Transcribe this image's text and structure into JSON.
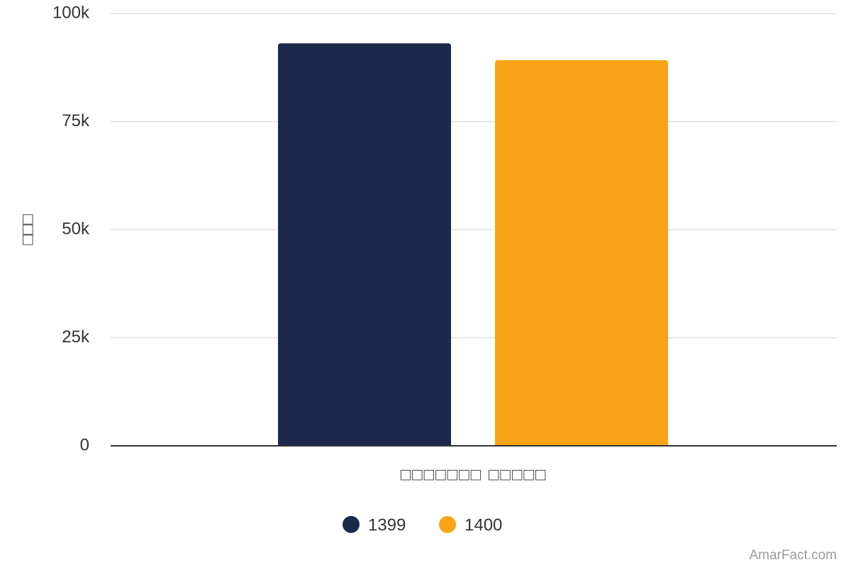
{
  "chart_data": {
    "type": "bar",
    "y_label": "□□□",
    "x_label": "□□□□□□□ □□□□□",
    "categories": [
      null
    ],
    "series": [
      {
        "name": "1399",
        "color": "#1b2a4c",
        "values": [
          93100
        ]
      },
      {
        "name": "1400",
        "color": "#f9a416",
        "values": [
          89200
        ]
      }
    ],
    "ylim": [
      0,
      100000
    ],
    "yticks": [
      0,
      {
        "value": 25000,
        "label": "25k"
      },
      {
        "value": 50000,
        "label": "50k"
      },
      {
        "value": 75000,
        "label": "75k"
      },
      {
        "value": 100000,
        "label": "100k"
      }
    ],
    "grid": true,
    "legend": "bottom"
  },
  "credit": "AmarFact.com"
}
